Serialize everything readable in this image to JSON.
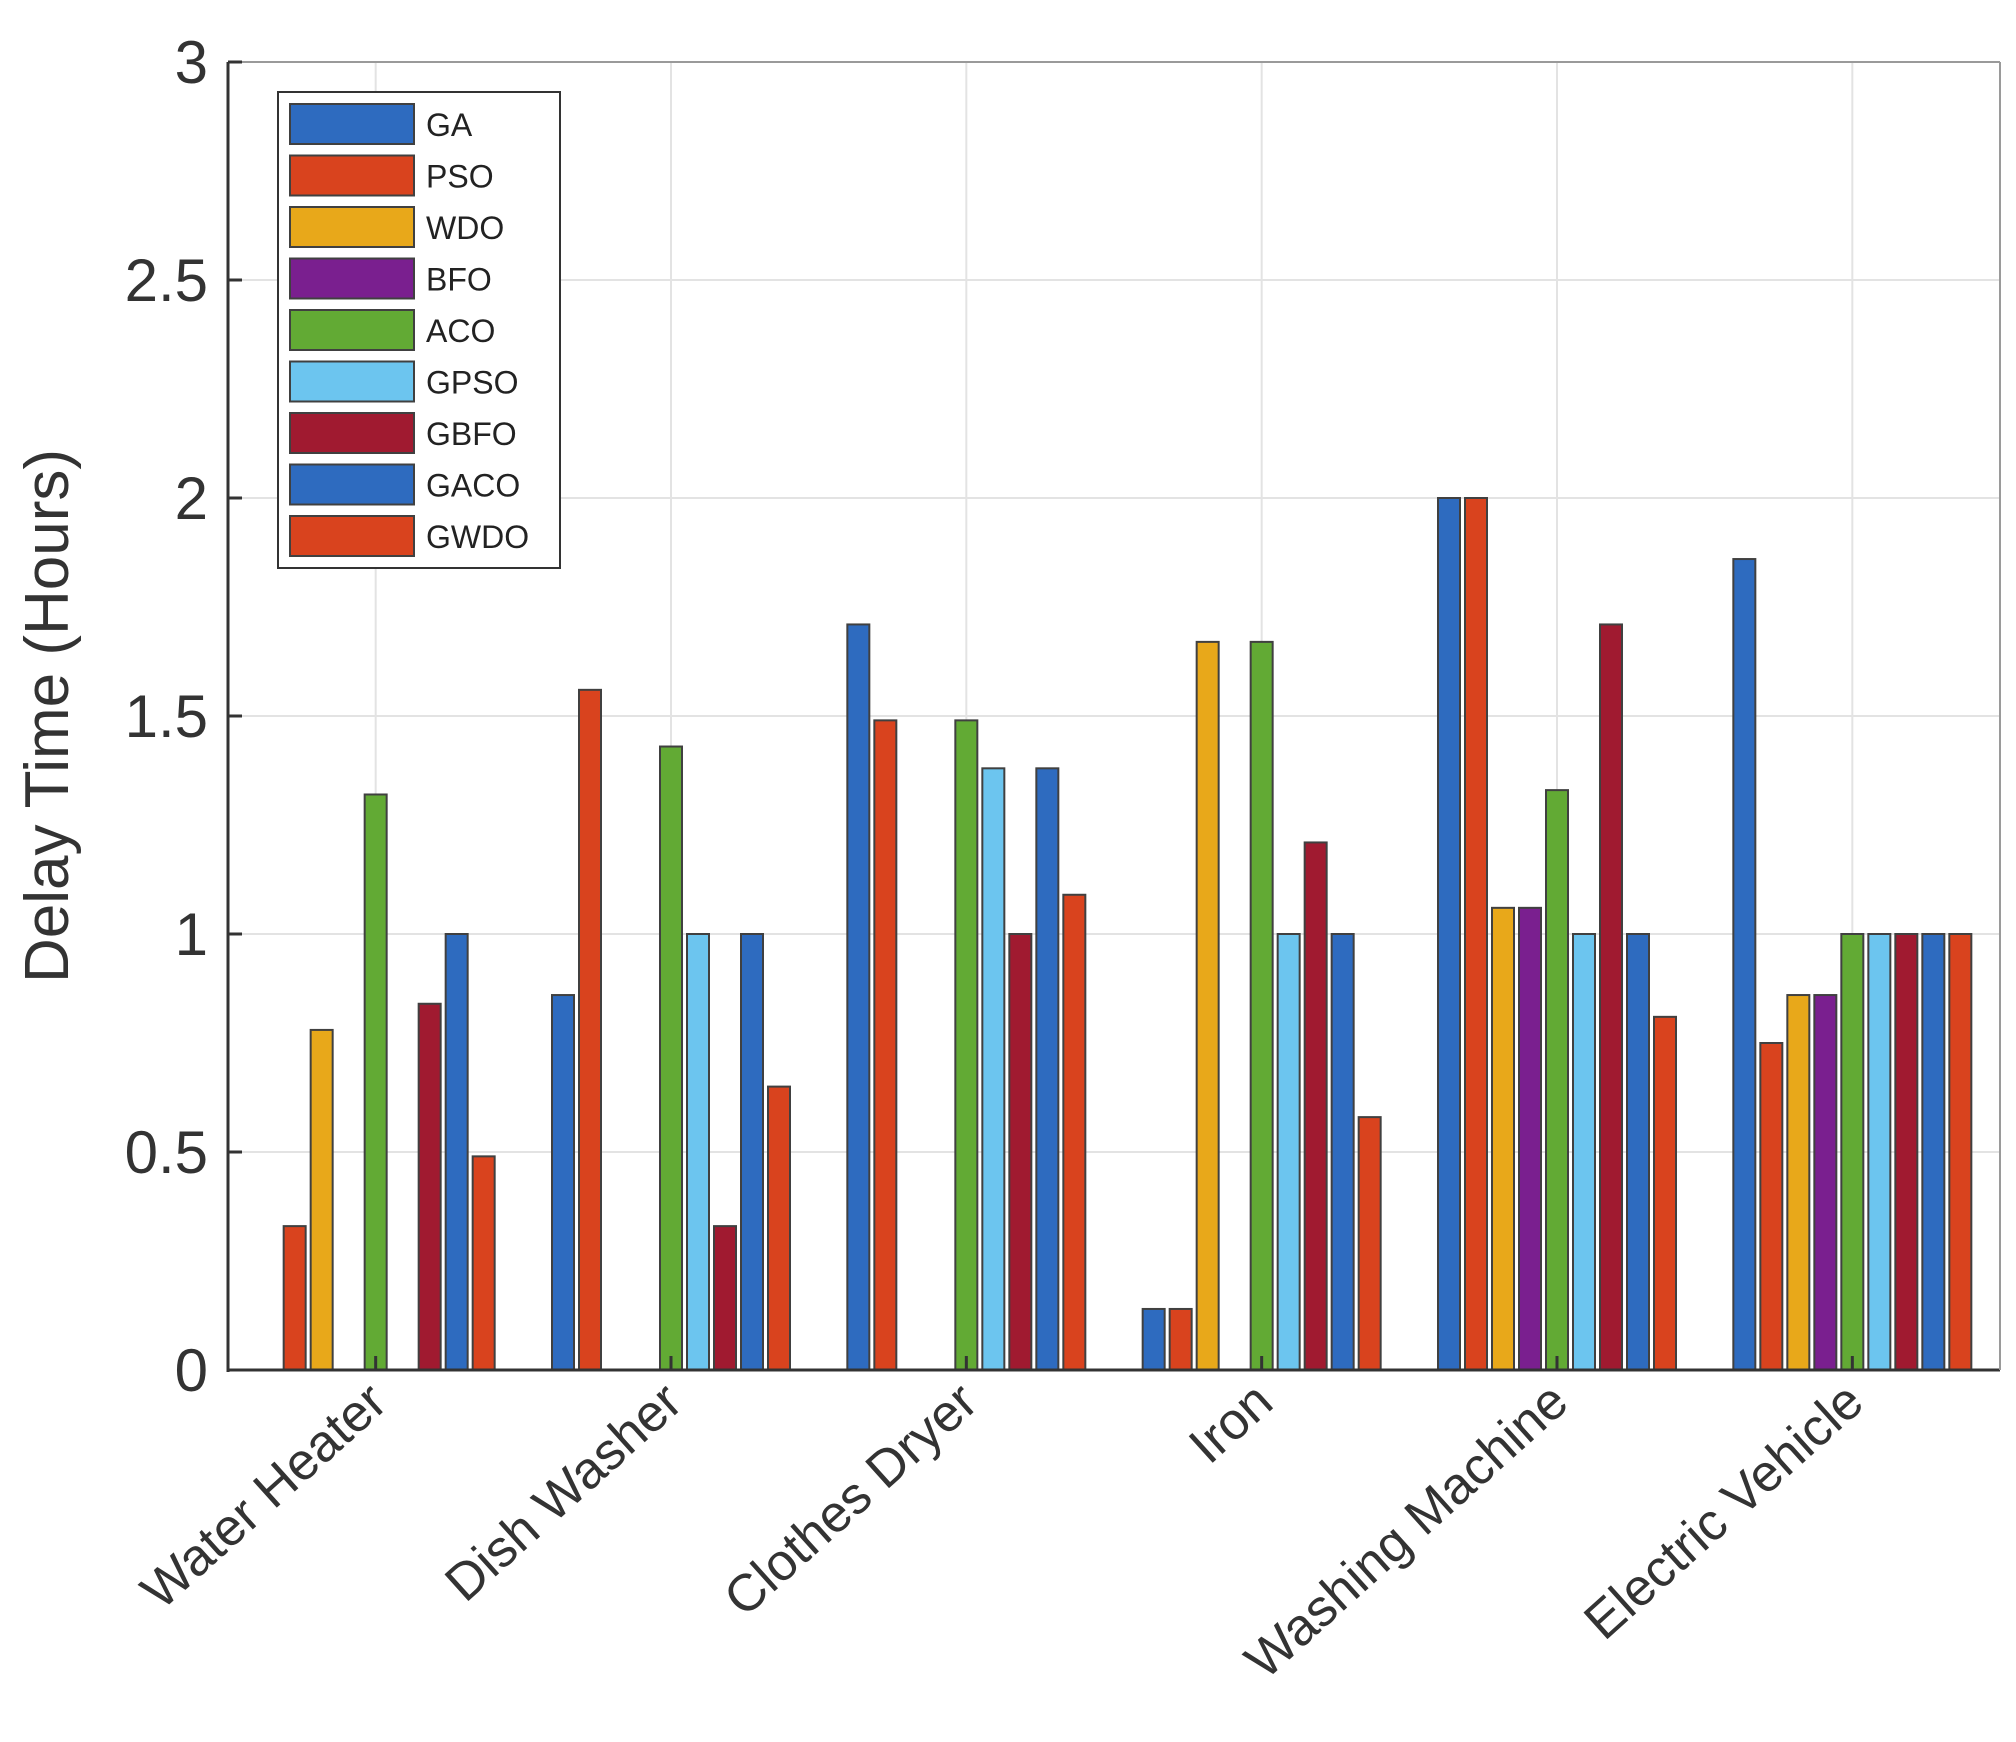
{
  "chart_data": {
    "type": "bar",
    "title": "",
    "xlabel": "",
    "ylabel": "Delay Time (Hours)",
    "ylim": [
      0,
      3
    ],
    "yticks": [
      0,
      0.5,
      1,
      1.5,
      2,
      2.5,
      3
    ],
    "ytick_labels": [
      "0",
      "0.5",
      "1",
      "1.5",
      "2",
      "2.5",
      "3"
    ],
    "grid": true,
    "legend_position": "top-left",
    "categories": [
      "Water Heater",
      "Dish Washer",
      "Clothes Dryer",
      "Iron",
      "Washing Machine",
      "Electric Vehicle"
    ],
    "series": [
      {
        "name": "GA",
        "color": "#2e6bbf",
        "values": [
          0,
          0.86,
          1.71,
          0.14,
          2.0,
          1.86
        ]
      },
      {
        "name": "PSO",
        "color": "#d9431e",
        "values": [
          0.33,
          1.56,
          1.49,
          0.14,
          2.0,
          0.75
        ]
      },
      {
        "name": "WDO",
        "color": "#e8a81a",
        "values": [
          0.78,
          0,
          0,
          1.67,
          1.06,
          0.86
        ]
      },
      {
        "name": "BFO",
        "color": "#7a1f8f",
        "values": [
          0,
          0,
          0,
          0,
          1.06,
          0.86
        ]
      },
      {
        "name": "ACO",
        "color": "#62aa34",
        "values": [
          1.32,
          1.43,
          1.49,
          1.67,
          1.33,
          1.0
        ]
      },
      {
        "name": "GPSO",
        "color": "#6cc5ef",
        "values": [
          0,
          1.0,
          1.38,
          1.0,
          1.0,
          1.0
        ]
      },
      {
        "name": "GBFO",
        "color": "#a01a30",
        "values": [
          0.84,
          0.33,
          1.0,
          1.21,
          1.71,
          1.0
        ]
      },
      {
        "name": "GACO",
        "color": "#2e6bbf",
        "values": [
          1.0,
          1.0,
          1.38,
          1.0,
          1.0,
          1.0
        ]
      },
      {
        "name": "GWDO",
        "color": "#d9431e",
        "values": [
          0.49,
          0.65,
          1.09,
          0.58,
          0.81,
          1.0
        ]
      }
    ]
  }
}
